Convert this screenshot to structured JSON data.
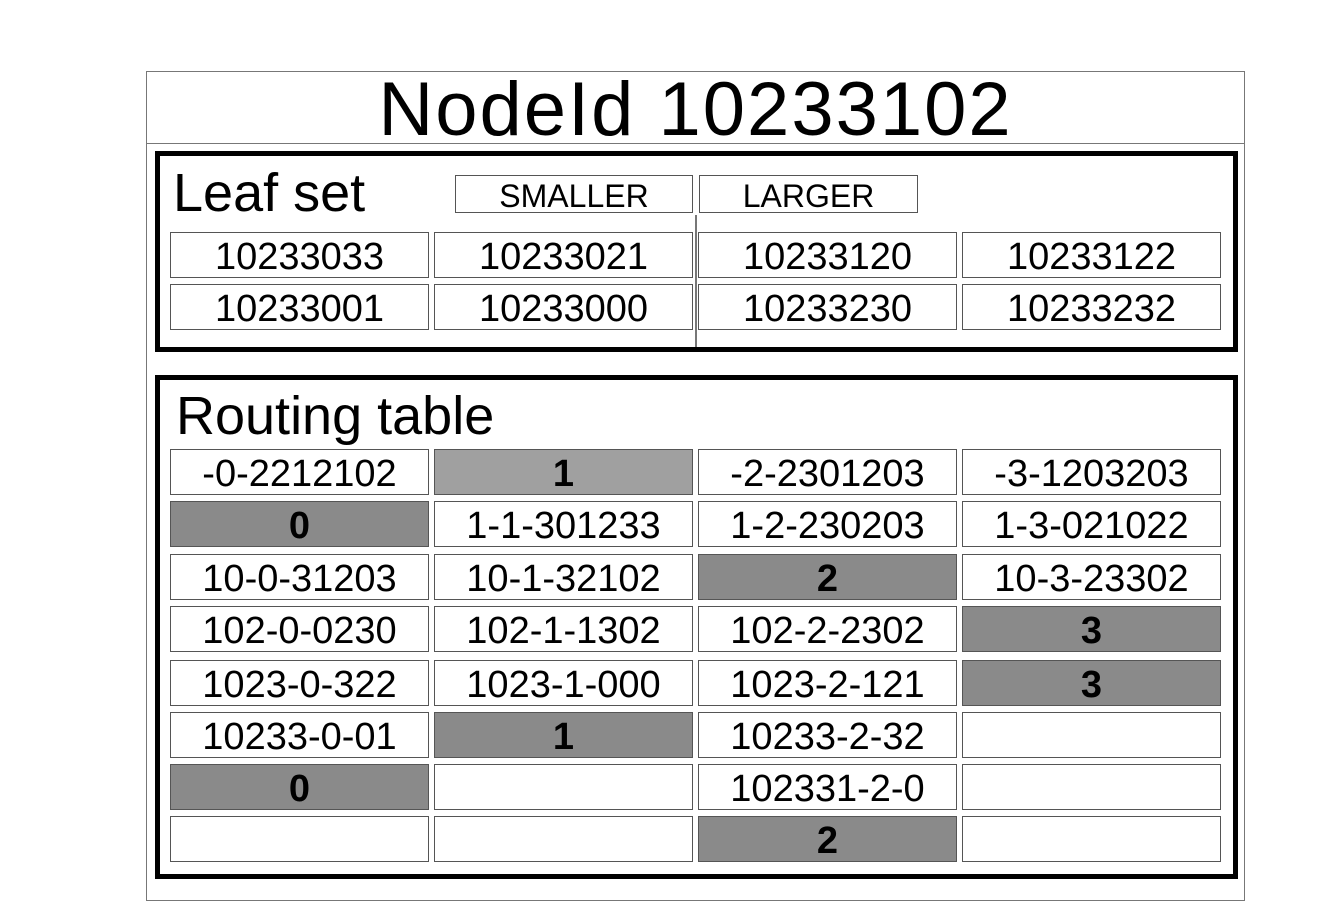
{
  "node_id_title": "NodeId 10233102",
  "leaf_set": {
    "title": "Leaf set",
    "smaller_label": "SMALLER",
    "larger_label": "LARGER",
    "rows": [
      [
        "10233033",
        "10233021",
        "10233120",
        "10233122"
      ],
      [
        "10233001",
        "10233000",
        "10233230",
        "10233232"
      ]
    ]
  },
  "routing_table": {
    "title": "Routing table",
    "rows": [
      [
        {
          "text": "-0-2212102",
          "own": false
        },
        {
          "text": "1",
          "own": true
        },
        {
          "text": "-2-2301203",
          "own": false
        },
        {
          "text": "-3-1203203",
          "own": false
        }
      ],
      [
        {
          "text": "0",
          "own": true
        },
        {
          "text": "1-1-301233",
          "own": false
        },
        {
          "text": "1-2-230203",
          "own": false
        },
        {
          "text": "1-3-021022",
          "own": false
        }
      ],
      [
        {
          "text": "10-0-31203",
          "own": false
        },
        {
          "text": "10-1-32102",
          "own": false
        },
        {
          "text": "2",
          "own": true
        },
        {
          "text": "10-3-23302",
          "own": false
        }
      ],
      [
        {
          "text": "102-0-0230",
          "own": false
        },
        {
          "text": "102-1-1302",
          "own": false
        },
        {
          "text": "102-2-2302",
          "own": false
        },
        {
          "text": "3",
          "own": true
        }
      ],
      [
        {
          "text": "1023-0-322",
          "own": false
        },
        {
          "text": "1023-1-000",
          "own": false
        },
        {
          "text": "1023-2-121",
          "own": false
        },
        {
          "text": "3",
          "own": true
        }
      ],
      [
        {
          "text": "10233-0-01",
          "own": false
        },
        {
          "text": "1",
          "own": true
        },
        {
          "text": "10233-2-32",
          "own": false
        },
        {
          "text": "",
          "own": false
        }
      ],
      [
        {
          "text": "0",
          "own": true
        },
        {
          "text": "",
          "own": false
        },
        {
          "text": "102331-2-0",
          "own": false
        },
        {
          "text": "",
          "own": false
        }
      ],
      [
        {
          "text": "",
          "own": false
        },
        {
          "text": "",
          "own": false
        },
        {
          "text": "2",
          "own": true
        },
        {
          "text": "",
          "own": false
        }
      ]
    ]
  }
}
